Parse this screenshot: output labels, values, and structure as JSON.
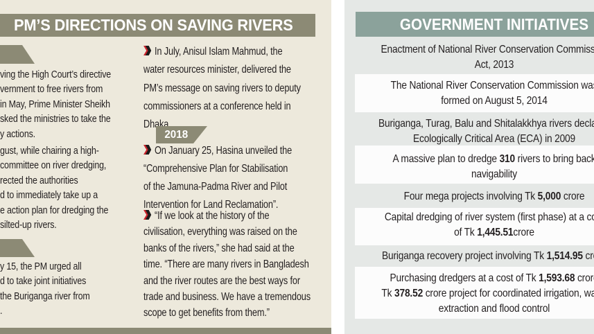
{
  "colors": {
    "cream": "#EDE9DC",
    "olive": "#8C8A75",
    "teal": "#8BA29B",
    "panelgray": "#E5E8E6",
    "rowwhite": "#FCFCFC",
    "arrow_red": "#C9252C",
    "arrow_black": "#1A1A1A",
    "text": "#231F20"
  },
  "left_panel": {
    "title": "PM’S DIRECTIONS ON SAVING RIVERS",
    "col1": {
      "para1": "ving the High Court’s directive\nvernment to free rivers from\nin May, Prime Minister Sheikh\nsked the ministries to take the\ny actions.",
      "para2": "gust, while chairing a high-\ncommittee on river dredging,\nrected the authorities\nd to immediately take up a\ne action plan for dredging the\nsilted-up rivers.",
      "para3": "y 15, the PM urged all\nd to take joint initiatives\nthe Buriganga river from\n."
    },
    "col2": {
      "para1": "In July, Anisul Islam Mahmud, the\nwater resources minister, delivered the\nPM’s message on saving rivers to deputy\ncommissioners at a conference held in\nDhaka.",
      "year_badge": "2018",
      "para2": "On January 25, Hasina unveiled the\n“Comprehensive Plan for Stabilisation\nof the Jamuna-Padma River and Pilot\nIntervention for Land Reclamation”.",
      "para3": "“If we look at the history of the\ncivilisation, everything was raised on the\nbanks of the rivers,” she had said at the\ntime. “There are many rivers in Bangladesh\nand the river routes are the best ways for\ntrade and business. We have a tremendous\nscope to get benefits from them.”"
    }
  },
  "right_panel": {
    "title": "GOVERNMENT INITIATIVES",
    "initiatives": [
      {
        "highlight": false,
        "lines": [
          [
            {
              "t": "Enactment of National River Conservation Commission"
            }
          ],
          [
            {
              "t": "Act, 2013"
            }
          ]
        ]
      },
      {
        "highlight": true,
        "lines": [
          [
            {
              "t": "The National River Conservation Commission was"
            }
          ],
          [
            {
              "t": "formed on August 5, 2014"
            }
          ]
        ]
      },
      {
        "highlight": false,
        "lines": [
          [
            {
              "t": "Buriganga, Turag, Balu and Shitalakkhya rivers declared"
            }
          ],
          [
            {
              "t": "Ecologically Critical Area (ECA) in 2009"
            }
          ]
        ]
      },
      {
        "highlight": true,
        "lines": [
          [
            {
              "t": "A massive plan to dredge "
            },
            {
              "t": "310",
              "b": true
            },
            {
              "t": " rivers to bring back"
            }
          ],
          [
            {
              "t": "navigability"
            }
          ]
        ]
      },
      {
        "highlight": false,
        "lines": [
          [
            {
              "t": "Four mega projects involving Tk "
            },
            {
              "t": "5,000",
              "b": true
            },
            {
              "t": " crore"
            }
          ]
        ]
      },
      {
        "highlight": true,
        "lines": [
          [
            {
              "t": "Capital dredging of river system (first phase) at a cost"
            }
          ],
          [
            {
              "t": "of Tk "
            },
            {
              "t": "1,445.51",
              "b": true
            },
            {
              "t": "crore"
            }
          ]
        ]
      },
      {
        "highlight": false,
        "lines": [
          [
            {
              "t": "Buriganga recovery project involving Tk "
            },
            {
              "t": "1,514.95",
              "b": true
            },
            {
              "t": " crore"
            }
          ]
        ]
      },
      {
        "highlight": true,
        "lines": [
          [
            {
              "t": "Purchasing dredgers at a cost of Tk "
            },
            {
              "t": "1,593.68",
              "b": true
            },
            {
              "t": " crore"
            }
          ],
          [
            {
              "t": "Tk "
            },
            {
              "t": "378.52",
              "b": true
            },
            {
              "t": " crore project for coordinated irrigation, water"
            }
          ],
          [
            {
              "t": "extraction and flood control"
            }
          ]
        ]
      }
    ]
  }
}
